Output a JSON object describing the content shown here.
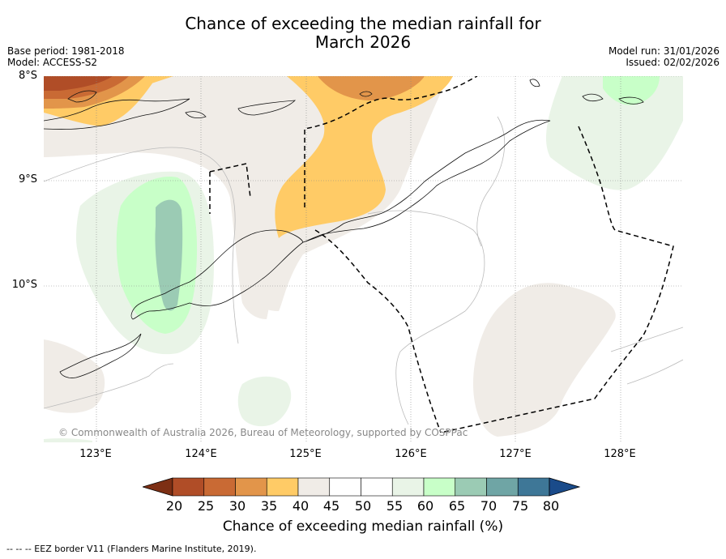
{
  "title_line1": "Chance of exceeding the median rainfall for",
  "title_line2": "March 2026",
  "meta_left": {
    "base_period": "Base period: 1981-2018",
    "model": "Model: ACCESS-S2"
  },
  "meta_right": {
    "model_run": "Model run: 31/01/2026",
    "issued": "Issued: 02/02/2026"
  },
  "map": {
    "lat_labels": [
      "8°S",
      "9°S",
      "10°S"
    ],
    "lon_labels": [
      "123°E",
      "124°E",
      "125°E",
      "126°E",
      "127°E",
      "128°E"
    ],
    "copyright": "© Commonwealth of Australia 2026, Bureau of Meteorology, supported by COSPPac"
  },
  "colorbar": {
    "ticks": [
      "20",
      "25",
      "30",
      "35",
      "40",
      "45",
      "50",
      "55",
      "60",
      "65",
      "70",
      "75",
      "80"
    ],
    "colors": [
      "#7d2f14",
      "#b04d27",
      "#c96a34",
      "#e2954a",
      "#ffcb66",
      "#f0ece7",
      "#ffffff",
      "#ffffff",
      "#e9f4e7",
      "#c8ffc8",
      "#9bcbb4",
      "#6fa5a5",
      "#3e7797",
      "#1a4b8a"
    ],
    "label": "Chance of exceeding median rainfall (%)"
  },
  "footnote": "--  --  -- EEZ border V11 (Flanders Marine Institute, 2019)."
}
